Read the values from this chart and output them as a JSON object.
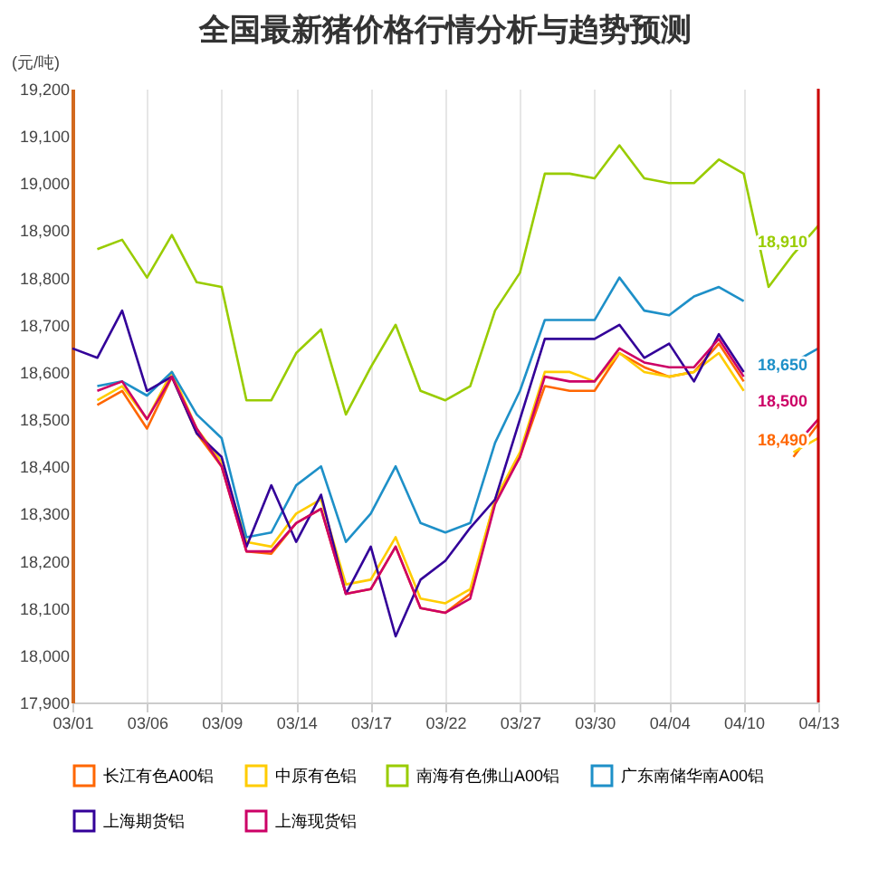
{
  "chart_data": {
    "type": "line",
    "title": "全国最新猪价格行情分析与趋势预测",
    "ylabel": "(元/吨)",
    "categories": [
      "03/01",
      null,
      null,
      "03/06",
      null,
      null,
      "03/09",
      null,
      null,
      "03/14",
      null,
      null,
      "03/17",
      null,
      null,
      "03/22",
      null,
      null,
      "03/27",
      null,
      null,
      "03/30",
      null,
      null,
      "04/04",
      null,
      null,
      "04/10",
      null,
      null,
      "04/13"
    ],
    "ylim": [
      17900,
      19200
    ],
    "yticks": [
      {
        "value": 17900,
        "label": "17,900"
      },
      {
        "value": 18000,
        "label": "18,000"
      },
      {
        "value": 18100,
        "label": "18,100"
      },
      {
        "value": 18200,
        "label": "18,200"
      },
      {
        "value": 18300,
        "label": "18,300"
      },
      {
        "value": 18400,
        "label": "18,400"
      },
      {
        "value": 18500,
        "label": "18,500"
      },
      {
        "value": 18600,
        "label": "18,600"
      },
      {
        "value": 18700,
        "label": "18,700"
      },
      {
        "value": 18800,
        "label": "18,800"
      },
      {
        "value": 18900,
        "label": "18,900"
      },
      {
        "value": 19000,
        "label": "19,000"
      },
      {
        "value": 19100,
        "label": "19,100"
      },
      {
        "value": 19200,
        "label": "19,200"
      }
    ],
    "grid": "x",
    "legend": "bottom",
    "marker": "none",
    "line_style": "solid",
    "ref_lines": [
      {
        "axis": "x",
        "value": "04/13",
        "color": "#cc0000"
      }
    ],
    "series": [
      {
        "name": "长江有色A00铝",
        "color": "#ff6600",
        "values": [
          null,
          18530,
          18560,
          18480,
          18590,
          18470,
          18400,
          18220,
          18215,
          18280,
          18310,
          18130,
          18140,
          18230,
          18100,
          18090,
          18130,
          18330,
          18420,
          18570,
          18560,
          18560,
          18640,
          18610,
          18590,
          18600,
          18660,
          18580,
          null,
          18420,
          18490
        ],
        "value_labels": [
          null,
          null,
          null,
          null,
          null,
          null,
          null,
          null,
          null,
          null,
          null,
          null,
          null,
          null,
          null,
          null,
          null,
          null,
          null,
          null,
          null,
          null,
          null,
          null,
          null,
          null,
          null,
          null,
          null,
          null,
          "18,490"
        ]
      },
      {
        "name": "中原有色铝",
        "color": "#ffcc00",
        "values": [
          null,
          18540,
          18570,
          18500,
          18600,
          18480,
          18410,
          18240,
          18230,
          18300,
          18330,
          18150,
          18160,
          18250,
          18120,
          18110,
          18140,
          18330,
          18430,
          18600,
          18600,
          18580,
          18640,
          18600,
          18590,
          18600,
          18640,
          18560,
          null,
          18430,
          18460
        ]
      },
      {
        "name": "南海有色佛山A00铝",
        "color": "#99cc00",
        "values": [
          null,
          18860,
          18880,
          18800,
          18890,
          18790,
          18780,
          18540,
          18540,
          18640,
          18690,
          18510,
          18610,
          18700,
          18560,
          18540,
          18570,
          18730,
          18810,
          19020,
          19020,
          19010,
          19080,
          19010,
          19000,
          19000,
          19050,
          19020,
          18780,
          18850,
          18910
        ],
        "value_labels": [
          null,
          null,
          null,
          null,
          null,
          null,
          null,
          null,
          null,
          null,
          null,
          null,
          null,
          null,
          null,
          null,
          null,
          null,
          null,
          null,
          null,
          null,
          null,
          null,
          null,
          null,
          null,
          null,
          null,
          null,
          "18,910"
        ]
      },
      {
        "name": "广东南储华南A00铝",
        "color": "#1e90c8",
        "values": [
          null,
          18570,
          18580,
          18550,
          18600,
          18510,
          18460,
          18250,
          18260,
          18360,
          18400,
          18240,
          18300,
          18400,
          18280,
          18260,
          18280,
          18450,
          18560,
          18710,
          18710,
          18710,
          18800,
          18730,
          18720,
          18760,
          18780,
          18750,
          null,
          18620,
          18650
        ],
        "value_labels": [
          null,
          null,
          null,
          null,
          null,
          null,
          null,
          null,
          null,
          null,
          null,
          null,
          null,
          null,
          null,
          null,
          null,
          null,
          null,
          null,
          null,
          null,
          null,
          null,
          null,
          null,
          null,
          null,
          null,
          null,
          "18,650"
        ]
      },
      {
        "name": "上海期货铝",
        "color": "#330099",
        "values": [
          18650,
          18630,
          18730,
          18560,
          18590,
          18470,
          18420,
          18230,
          18360,
          18240,
          18340,
          18130,
          18230,
          18040,
          18160,
          18200,
          18270,
          18330,
          18500,
          18670,
          18670,
          18670,
          18700,
          18630,
          18660,
          18580,
          18680,
          18600,
          null,
          null,
          null
        ]
      },
      {
        "name": "上海现货铝",
        "color": "#cc0066",
        "values": [
          null,
          18560,
          18580,
          18500,
          18590,
          18480,
          18400,
          18220,
          18220,
          18280,
          18310,
          18130,
          18140,
          18230,
          18100,
          18090,
          18120,
          18320,
          18420,
          18590,
          18580,
          18580,
          18650,
          18620,
          18610,
          18610,
          18670,
          18590,
          null,
          18440,
          18500
        ],
        "value_labels": [
          null,
          null,
          null,
          null,
          null,
          null,
          null,
          null,
          null,
          null,
          null,
          null,
          null,
          null,
          null,
          null,
          null,
          null,
          null,
          null,
          null,
          null,
          null,
          null,
          null,
          null,
          null,
          null,
          null,
          null,
          "18,500"
        ]
      }
    ]
  }
}
